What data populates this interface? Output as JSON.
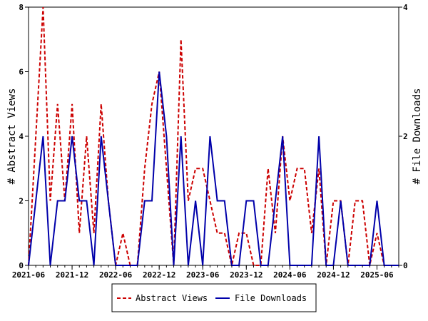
{
  "chart_data": {
    "type": "line",
    "title": "",
    "ylabel_left": "# Abstract Views",
    "ylabel_right": "# File Downloads",
    "ylim_left": [
      0,
      8
    ],
    "ylim_right": [
      0,
      4
    ],
    "left_ticks": [
      0,
      2,
      4,
      6,
      8
    ],
    "right_ticks": [
      0,
      2,
      4
    ],
    "x_start": "2021-06",
    "x_end": "2025-09",
    "x_ticks": [
      "2021-06",
      "2021-12",
      "2022-06",
      "2022-12",
      "2023-06",
      "2023-12",
      "2024-06",
      "2024-12",
      "2025-06"
    ],
    "grid": false,
    "legend_position": "bottom",
    "series": [
      {
        "name": "Abstract Views",
        "axis": "left",
        "color": "#cc0000",
        "style": "dashed",
        "x": [
          "2021-06",
          "2021-07",
          "2021-08",
          "2021-09",
          "2021-10",
          "2021-11",
          "2021-12",
          "2022-01",
          "2022-02",
          "2022-03",
          "2022-04",
          "2022-05",
          "2022-06",
          "2022-07",
          "2022-08",
          "2022-09",
          "2022-10",
          "2022-11",
          "2022-12",
          "2023-01",
          "2023-02",
          "2023-03",
          "2023-04",
          "2023-05",
          "2023-06",
          "2023-07",
          "2023-08",
          "2023-09",
          "2023-10",
          "2023-11",
          "2023-12",
          "2024-01",
          "2024-02",
          "2024-03",
          "2024-04",
          "2024-05",
          "2024-06",
          "2024-07",
          "2024-08",
          "2024-09",
          "2024-10",
          "2024-11",
          "2024-12",
          "2025-01",
          "2025-02",
          "2025-03",
          "2025-04",
          "2025-05",
          "2025-06",
          "2025-07",
          "2025-08",
          "2025-09"
        ],
        "values": [
          0,
          4,
          8,
          2,
          5,
          2,
          5,
          1,
          4,
          1,
          5,
          2,
          0,
          1,
          0,
          0,
          3,
          5,
          6,
          3,
          0,
          7,
          2,
          3,
          3,
          2,
          1,
          1,
          0,
          1,
          1,
          0,
          0,
          3,
          1,
          4,
          2,
          3,
          3,
          1,
          3,
          0,
          2,
          2,
          0,
          2,
          2,
          0,
          1,
          0,
          0,
          0
        ]
      },
      {
        "name": "File Downloads",
        "axis": "right",
        "color": "#0000aa",
        "style": "solid",
        "x": [
          "2021-06",
          "2021-07",
          "2021-08",
          "2021-09",
          "2021-10",
          "2021-11",
          "2021-12",
          "2022-01",
          "2022-02",
          "2022-03",
          "2022-04",
          "2022-05",
          "2022-06",
          "2022-07",
          "2022-08",
          "2022-09",
          "2022-10",
          "2022-11",
          "2022-12",
          "2023-01",
          "2023-02",
          "2023-03",
          "2023-04",
          "2023-05",
          "2023-06",
          "2023-07",
          "2023-08",
          "2023-09",
          "2023-10",
          "2023-11",
          "2023-12",
          "2024-01",
          "2024-02",
          "2024-03",
          "2024-04",
          "2024-05",
          "2024-06",
          "2024-07",
          "2024-08",
          "2024-09",
          "2024-10",
          "2024-11",
          "2024-12",
          "2025-01",
          "2025-02",
          "2025-03",
          "2025-04",
          "2025-05",
          "2025-06",
          "2025-07",
          "2025-08",
          "2025-09"
        ],
        "values": [
          0,
          1,
          2,
          0,
          1,
          1,
          2,
          1,
          1,
          0,
          2,
          1,
          0,
          0,
          0,
          0,
          1,
          1,
          3,
          2,
          0,
          2,
          0,
          1,
          0,
          2,
          1,
          1,
          0,
          0,
          1,
          1,
          0,
          0,
          1,
          2,
          0,
          0,
          0,
          0,
          2,
          0,
          0,
          1,
          0,
          0,
          0,
          0,
          1,
          0,
          0,
          0
        ]
      }
    ]
  }
}
